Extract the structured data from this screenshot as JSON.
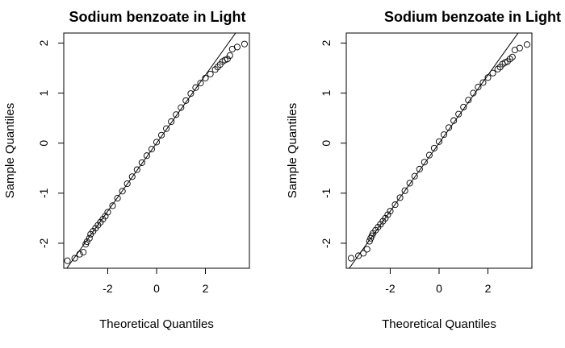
{
  "chart_data": [
    {
      "type": "scatter",
      "title": "Sodium benzoate in Light",
      "xlabel": "Theoretical Quantiles",
      "ylabel": "Sample Quantiles",
      "xlim": [
        -3.8,
        3.8
      ],
      "ylim": [
        -2.5,
        2.2
      ],
      "xticks": [
        -2,
        0,
        2
      ],
      "yticks": [
        -2,
        -1,
        0,
        1,
        2
      ],
      "reference_line": {
        "intercept": 0.0,
        "slope": 0.68
      },
      "series": [
        {
          "x": [
            -3.65,
            -3.35,
            -3.15,
            -3.0,
            -2.9,
            -2.85,
            -2.75,
            -2.7,
            -2.6,
            -2.5,
            -2.4,
            -2.3,
            -2.2,
            -2.1,
            -2.0,
            -1.8,
            -1.6,
            -1.4,
            -1.2,
            -1.0,
            -0.8,
            -0.6,
            -0.4,
            -0.2,
            0.0,
            0.2,
            0.4,
            0.6,
            0.8,
            1.0,
            1.2,
            1.4,
            1.6,
            1.8,
            2.0,
            2.2,
            2.4,
            2.5,
            2.6,
            2.7,
            2.8,
            2.9,
            3.0,
            3.1,
            3.3,
            3.6
          ],
          "y": [
            -2.35,
            -2.3,
            -2.22,
            -2.18,
            -2.02,
            -1.97,
            -1.9,
            -1.82,
            -1.76,
            -1.7,
            -1.64,
            -1.58,
            -1.52,
            -1.46,
            -1.38,
            -1.25,
            -1.1,
            -0.96,
            -0.81,
            -0.67,
            -0.53,
            -0.39,
            -0.25,
            -0.12,
            0.02,
            0.16,
            0.29,
            0.43,
            0.57,
            0.71,
            0.85,
            0.99,
            1.11,
            1.2,
            1.3,
            1.38,
            1.47,
            1.52,
            1.57,
            1.63,
            1.66,
            1.68,
            1.75,
            1.88,
            1.92,
            1.98
          ]
        }
      ]
    },
    {
      "type": "scatter",
      "title": "Sodium benzoate in Light w/ varFunc",
      "xlabel": "Theoretical Quantiles",
      "ylabel": "Sample Quantiles",
      "xlim": [
        -3.8,
        3.8
      ],
      "ylim": [
        -2.5,
        2.2
      ],
      "xticks": [
        -2,
        0,
        2
      ],
      "yticks": [
        -2,
        -1,
        0,
        1,
        2
      ],
      "reference_line": {
        "intercept": 0.0,
        "slope": 0.68
      },
      "series": [
        {
          "x": [
            -3.6,
            -3.3,
            -3.1,
            -2.95,
            -2.85,
            -2.8,
            -2.75,
            -2.7,
            -2.6,
            -2.5,
            -2.4,
            -2.3,
            -2.2,
            -2.1,
            -2.0,
            -1.8,
            -1.6,
            -1.4,
            -1.2,
            -1.0,
            -0.8,
            -0.6,
            -0.4,
            -0.2,
            0.0,
            0.2,
            0.4,
            0.6,
            0.8,
            1.0,
            1.2,
            1.4,
            1.6,
            1.8,
            2.0,
            2.2,
            2.4,
            2.5,
            2.6,
            2.7,
            2.8,
            2.9,
            3.0,
            3.1,
            3.3,
            3.6
          ],
          "y": [
            -2.3,
            -2.25,
            -2.2,
            -2.12,
            -1.96,
            -1.9,
            -1.85,
            -1.8,
            -1.74,
            -1.68,
            -1.62,
            -1.56,
            -1.5,
            -1.43,
            -1.36,
            -1.23,
            -1.09,
            -0.95,
            -0.8,
            -0.66,
            -0.52,
            -0.38,
            -0.24,
            -0.1,
            0.03,
            0.17,
            0.31,
            0.45,
            0.58,
            0.72,
            0.86,
            1.0,
            1.12,
            1.21,
            1.31,
            1.4,
            1.48,
            1.52,
            1.58,
            1.61,
            1.63,
            1.68,
            1.72,
            1.86,
            1.9,
            1.97
          ]
        }
      ]
    }
  ]
}
